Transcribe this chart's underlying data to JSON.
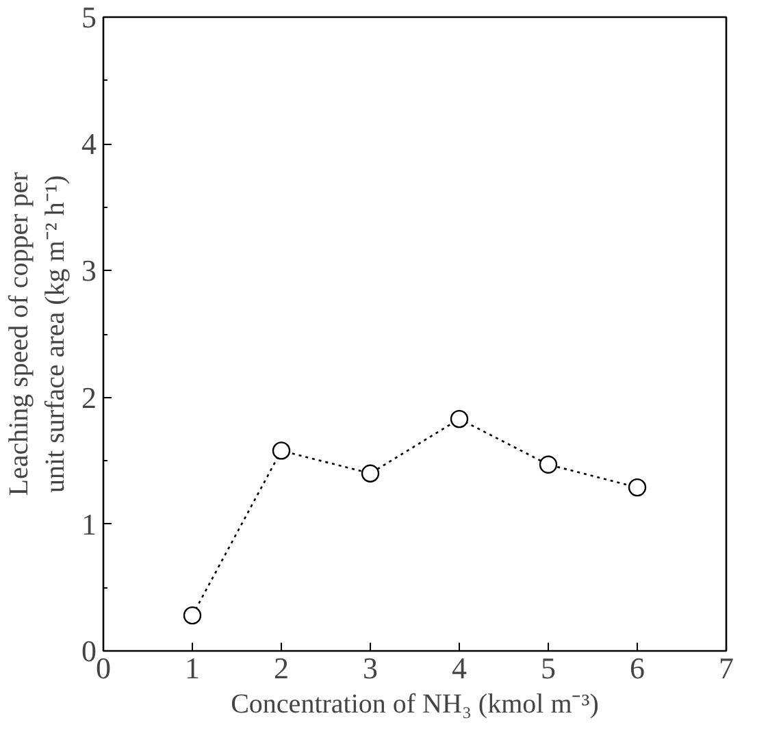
{
  "chart_data": {
    "type": "line",
    "xlabel": "Concentration of NH₃ (kmol m⁻³)",
    "ylabel": "Leaching speed of copper per unit surface area (kg m⁻² h⁻¹)",
    "x": [
      1,
      2,
      3,
      4,
      5,
      6
    ],
    "series": [
      {
        "color": "#000000",
        "values": [
          0.28,
          1.58,
          1.4,
          1.83,
          1.47,
          1.29
        ]
      }
    ],
    "xlim": [
      0,
      7
    ],
    "ylim": [
      0,
      5
    ],
    "xticks": [
      0,
      1,
      2,
      3,
      4,
      5,
      6,
      7
    ],
    "yticks": [
      0,
      1,
      2,
      3,
      4,
      5
    ],
    "marker": "circle",
    "line_style": "dotted",
    "grid": false
  }
}
